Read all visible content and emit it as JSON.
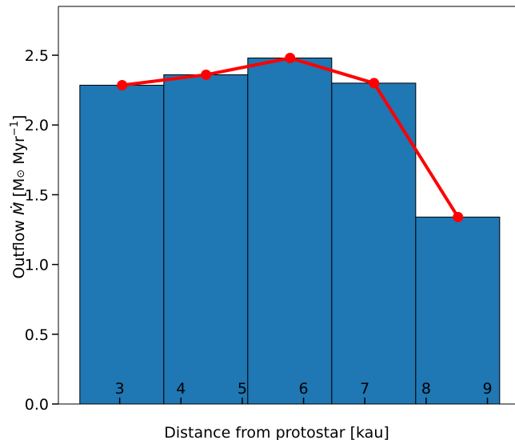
{
  "chart_data": {
    "type": "bar",
    "xlabel": "Distance from protostar [kau]",
    "ylabel_prefix": "Outflow ",
    "ylabel_symbol": "Ṁ",
    "ylabel_unit_open": " [M",
    "ylabel_sun": "⊙",
    "ylabel_myr": " Myr",
    "ylabel_exp": "−1",
    "ylabel_close": "]",
    "xlim": [
      2.0,
      9.45
    ],
    "ylim": [
      0,
      2.85
    ],
    "x_ticks": [
      3,
      4,
      5,
      6,
      7,
      8,
      9
    ],
    "y_ticks": [
      0.0,
      0.5,
      1.0,
      1.5,
      2.0,
      2.5
    ],
    "y_tick_labels": [
      "0.0",
      "0.5",
      "1.0",
      "1.5",
      "2.0",
      "2.5"
    ],
    "bars": [
      {
        "x_start": 2.35,
        "x_end": 3.72,
        "value": 2.285
      },
      {
        "x_start": 3.72,
        "x_end": 5.09,
        "value": 2.36
      },
      {
        "x_start": 5.09,
        "x_end": 6.46,
        "value": 2.48
      },
      {
        "x_start": 6.46,
        "x_end": 7.83,
        "value": 2.3
      },
      {
        "x_start": 7.83,
        "x_end": 9.2,
        "value": 1.34
      }
    ],
    "line": {
      "x": [
        3.04,
        4.41,
        5.78,
        7.15,
        8.52
      ],
      "y": [
        2.285,
        2.36,
        2.48,
        2.3,
        1.34
      ]
    },
    "colors": {
      "bar_fill": "#1f77b4",
      "bar_edge": "#000000",
      "line": "#ff0000"
    },
    "grid": false,
    "legend": "none"
  }
}
